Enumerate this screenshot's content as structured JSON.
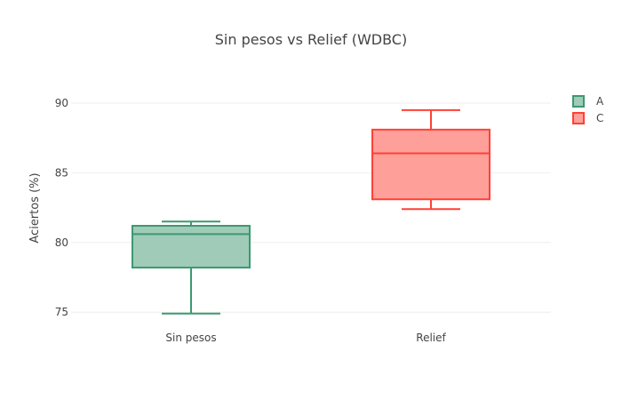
{
  "chart_data": {
    "type": "box",
    "title": "Sin pesos vs Relief (WDBC)",
    "xlabel": "",
    "ylabel": "Aciertos (%)",
    "ylim": [
      73.8,
      92.3
    ],
    "yticks": [
      75,
      80,
      85,
      90
    ],
    "grid": true,
    "legend_placement": "top-right",
    "categories": [
      "Sin pesos",
      "Relief"
    ],
    "series": [
      {
        "name": "A",
        "category": "Sin pesos",
        "color": "#3d9970",
        "fill": "#9fcbb8",
        "min": 74.9,
        "q1": 78.2,
        "median": 80.6,
        "q3": 81.2,
        "max": 81.5
      },
      {
        "name": "C",
        "category": "Relief",
        "color": "#ff4136",
        "fill": "#ff9f9a",
        "min": 82.4,
        "q1": 83.1,
        "median": 86.4,
        "q3": 88.1,
        "max": 89.5
      }
    ]
  }
}
